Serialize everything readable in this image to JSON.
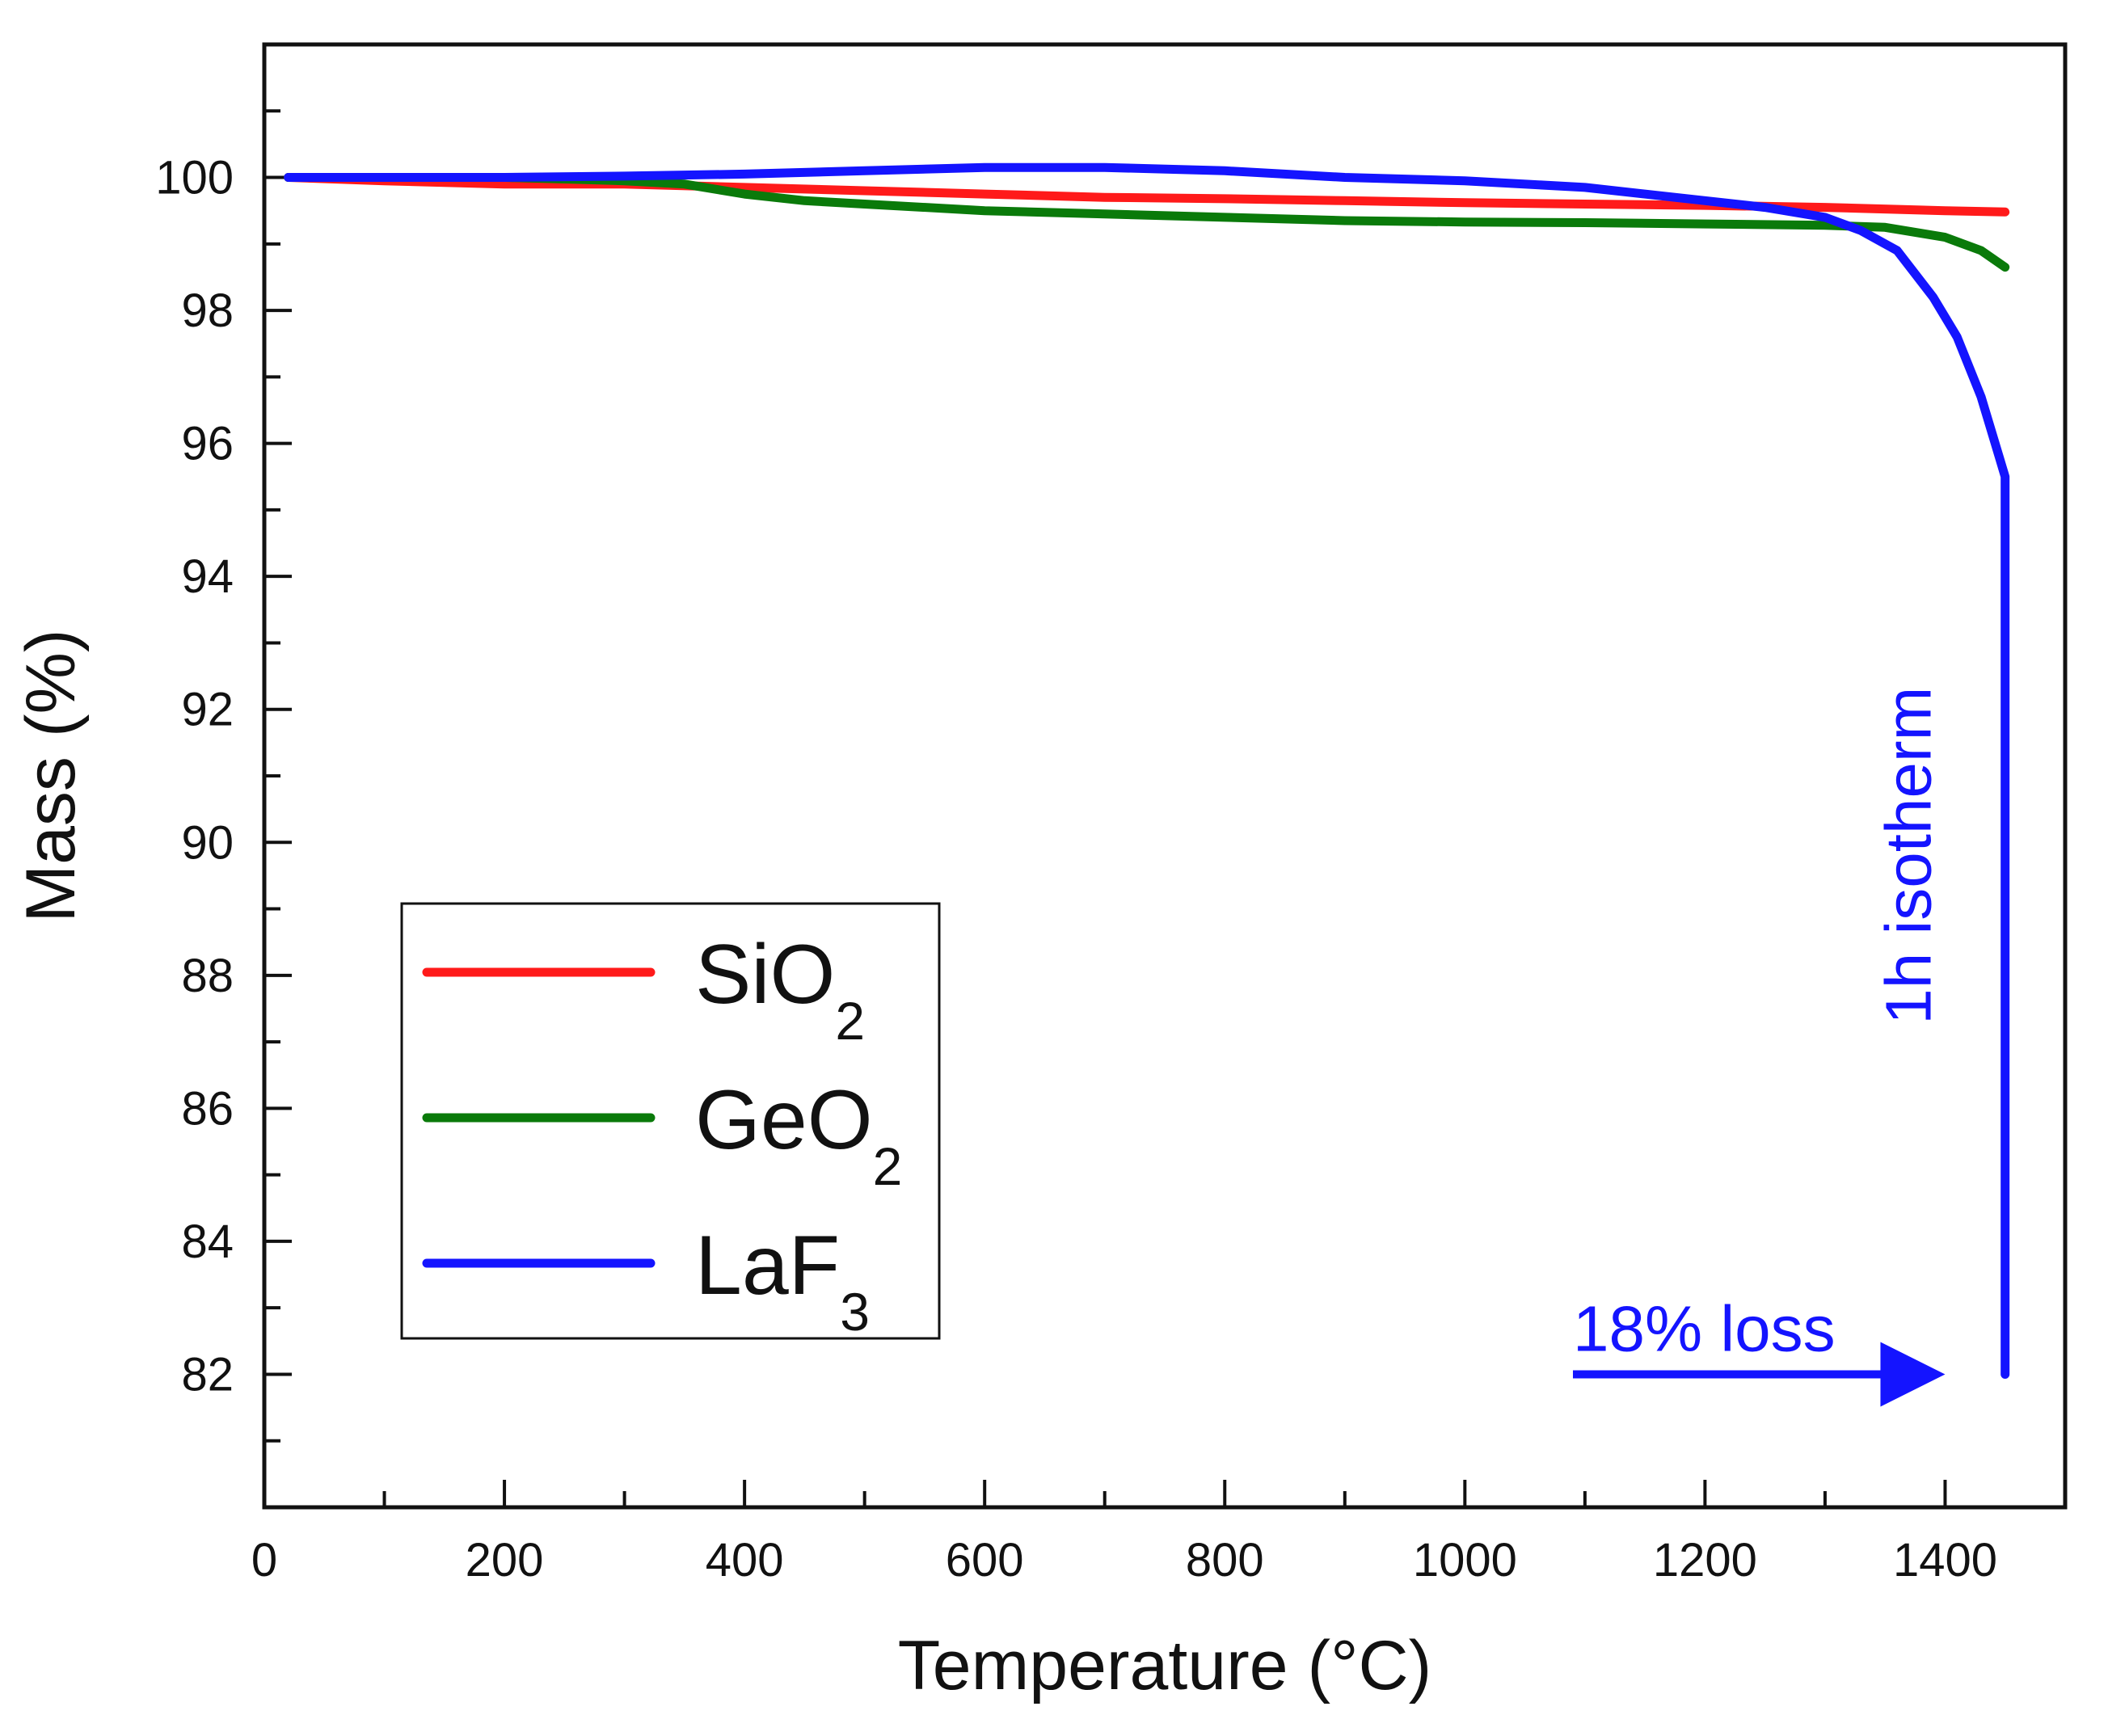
{
  "chart_data": {
    "type": "line",
    "xlabel": "Temperature (°C)",
    "ylabel": "Mass (%)",
    "xlim": [
      0,
      1500
    ],
    "ylim": [
      80,
      102
    ],
    "x_ticks": [
      0,
      200,
      400,
      600,
      800,
      1000,
      1200,
      1400
    ],
    "y_ticks": [
      82,
      84,
      86,
      88,
      90,
      92,
      94,
      96,
      98,
      100
    ],
    "grid": false,
    "legend_placement": "left",
    "series": [
      {
        "name": "SiO",
        "name_subscript": "2",
        "color": "#ff1a1a",
        "points": [
          [
            20,
            100.0
          ],
          [
            100,
            99.95
          ],
          [
            200,
            99.9
          ],
          [
            300,
            99.9
          ],
          [
            400,
            99.85
          ],
          [
            500,
            99.8
          ],
          [
            600,
            99.75
          ],
          [
            700,
            99.7
          ],
          [
            800,
            99.68
          ],
          [
            900,
            99.65
          ],
          [
            1000,
            99.62
          ],
          [
            1100,
            99.6
          ],
          [
            1200,
            99.58
          ],
          [
            1300,
            99.55
          ],
          [
            1400,
            99.5
          ],
          [
            1450,
            99.48
          ]
        ]
      },
      {
        "name": "GeO",
        "name_subscript": "2",
        "color": "#0a7a0a",
        "points": [
          [
            20,
            100.0
          ],
          [
            100,
            100.0
          ],
          [
            200,
            100.0
          ],
          [
            300,
            99.95
          ],
          [
            350,
            99.9
          ],
          [
            400,
            99.75
          ],
          [
            450,
            99.65
          ],
          [
            500,
            99.6
          ],
          [
            600,
            99.5
          ],
          [
            700,
            99.45
          ],
          [
            800,
            99.4
          ],
          [
            900,
            99.35
          ],
          [
            1000,
            99.33
          ],
          [
            1100,
            99.32
          ],
          [
            1200,
            99.3
          ],
          [
            1300,
            99.28
          ],
          [
            1350,
            99.25
          ],
          [
            1400,
            99.1
          ],
          [
            1430,
            98.9
          ],
          [
            1450,
            98.65
          ]
        ]
      },
      {
        "name": "LaF",
        "name_subscript": "3",
        "color": "#1414ff",
        "points": [
          [
            20,
            100.0
          ],
          [
            100,
            100.0
          ],
          [
            200,
            100.0
          ],
          [
            300,
            100.02
          ],
          [
            400,
            100.05
          ],
          [
            500,
            100.1
          ],
          [
            600,
            100.15
          ],
          [
            700,
            100.15
          ],
          [
            800,
            100.1
          ],
          [
            900,
            100.0
          ],
          [
            1000,
            99.95
          ],
          [
            1100,
            99.85
          ],
          [
            1200,
            99.65
          ],
          [
            1250,
            99.55
          ],
          [
            1300,
            99.4
          ],
          [
            1330,
            99.2
          ],
          [
            1360,
            98.9
          ],
          [
            1390,
            98.2
          ],
          [
            1410,
            97.6
          ],
          [
            1430,
            96.7
          ],
          [
            1445,
            95.8
          ],
          [
            1450,
            95.5
          ],
          [
            1450,
            93.5
          ],
          [
            1450,
            92.5
          ],
          [
            1450,
            82.0
          ]
        ]
      }
    ],
    "annotations": [
      {
        "text": "1h isotherm",
        "color": "#1414ff"
      },
      {
        "text": "18% loss",
        "color": "#1414ff"
      }
    ]
  }
}
